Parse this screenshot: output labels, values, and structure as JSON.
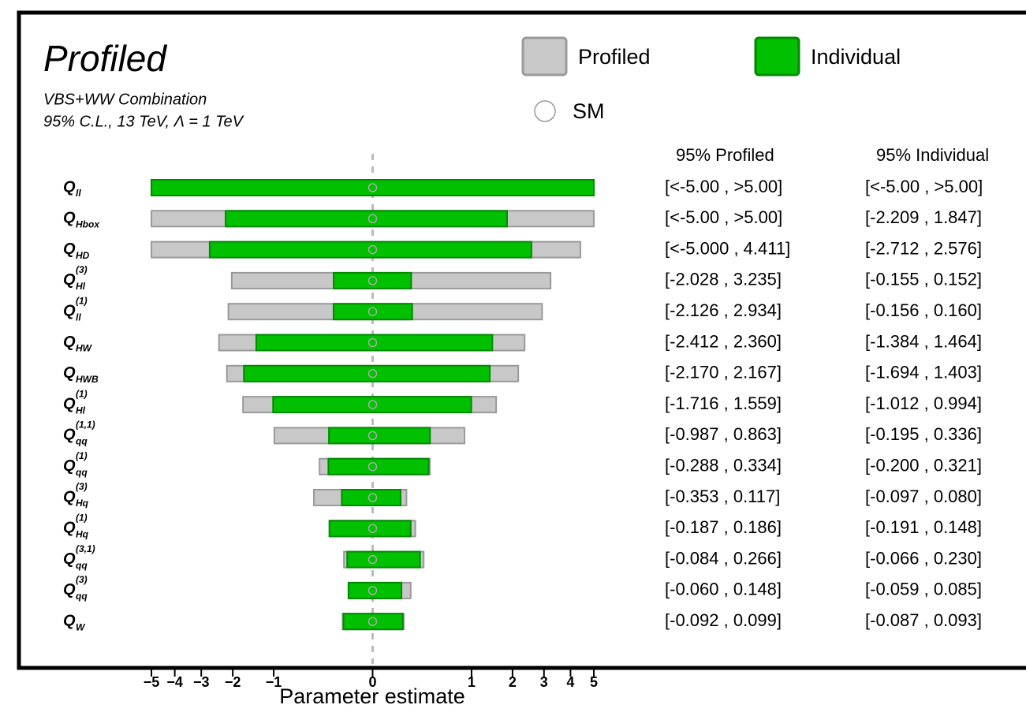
{
  "chart_data": {
    "type": "interval",
    "title": "Profiled",
    "subtitle_lines": [
      "VBS+WW Combination",
      "95% C.L., 13 TeV, Λ = 1 TeV"
    ],
    "x_label": "Parameter estimate",
    "x_scale": "sqrt",
    "xlim": [
      -5,
      5
    ],
    "xticks": [
      {
        "value": -5,
        "label": "−5"
      },
      {
        "value": -4,
        "label": "−4"
      },
      {
        "value": -3,
        "label": "−3"
      },
      {
        "value": -2,
        "label": "−2"
      },
      {
        "value": -1,
        "label": "−1"
      },
      0,
      1,
      2,
      3,
      4,
      5
    ],
    "sm_label": "SM",
    "sm_value": 0,
    "parameters": [
      {
        "symbol": "Q",
        "sub": "ll",
        "sup": null
      },
      {
        "symbol": "Q",
        "sub": "Hbox",
        "sup": null
      },
      {
        "symbol": "Q",
        "sub": "HD",
        "sup": null
      },
      {
        "symbol": "Q",
        "sub": "Hl",
        "sup": "(3)"
      },
      {
        "symbol": "Q",
        "sub": "ll",
        "sup": "(1)"
      },
      {
        "symbol": "Q",
        "sub": "HW",
        "sup": null
      },
      {
        "symbol": "Q",
        "sub": "HWB",
        "sup": null
      },
      {
        "symbol": "Q",
        "sub": "Hl",
        "sup": "(1)"
      },
      {
        "symbol": "Q",
        "sub": "qq",
        "sup": "(1,1)"
      },
      {
        "symbol": "Q",
        "sub": "qq",
        "sup": "(1)"
      },
      {
        "symbol": "Q",
        "sub": "Hq",
        "sup": "(3)"
      },
      {
        "symbol": "Q",
        "sub": "Hq",
        "sup": "(1)"
      },
      {
        "symbol": "Q",
        "sub": "qq",
        "sup": "(3,1)"
      },
      {
        "symbol": "Q",
        "sub": "qq",
        "sup": "(3)"
      },
      {
        "symbol": "Q",
        "sub": "W",
        "sup": null
      }
    ],
    "series": [
      {
        "name": "Profiled",
        "header": "95% Profiled",
        "color": "#c8c8c8",
        "edge": "#9a9a9a",
        "lows": [
          -5,
          -5,
          -5,
          -2.028,
          -2.126,
          -2.412,
          -2.17,
          -1.716,
          -0.987,
          -0.288,
          -0.353,
          -0.187,
          -0.084,
          -0.06,
          -0.092
        ],
        "highs": [
          5,
          5,
          4.411,
          3.235,
          2.934,
          2.36,
          2.167,
          1.559,
          0.863,
          0.334,
          0.117,
          0.186,
          0.266,
          0.148,
          0.099
        ],
        "value_labels": [
          "[<-5.00 , >5.00]",
          "[<-5.00 , >5.00]",
          "[<-5.000 , 4.411]",
          "[-2.028 , 3.235]",
          "[-2.126 , 2.934]",
          "[-2.412 , 2.360]",
          "[-2.170 , 2.167]",
          "[-1.716 , 1.559]",
          "[-0.987 , 0.863]",
          "[-0.288 , 0.334]",
          "[-0.353 , 0.117]",
          "[-0.187 , 0.186]",
          "[-0.084 , 0.266]",
          "[-0.060 , 0.148]",
          "[-0.092 , 0.099]"
        ]
      },
      {
        "name": "Individual",
        "header": "95% Individual",
        "color": "#00c000",
        "edge": "#008a00",
        "lows": [
          -5,
          -2.209,
          -2.712,
          -0.155,
          -0.156,
          -1.384,
          -1.694,
          -1.012,
          -0.195,
          -0.2,
          -0.097,
          -0.191,
          -0.066,
          -0.059,
          -0.087
        ],
        "highs": [
          5,
          1.847,
          2.576,
          0.152,
          0.16,
          1.464,
          1.403,
          0.994,
          0.336,
          0.321,
          0.08,
          0.148,
          0.23,
          0.085,
          0.093
        ],
        "value_labels": [
          "[<-5.00 , >5.00]",
          "[-2.209 , 1.847]",
          "[-2.712 , 2.576]",
          "[-0.155 , 0.152]",
          "[-0.156 , 0.160]",
          "[-1.384 , 1.464]",
          "[-1.694 , 1.403]",
          "[-1.012 , 0.994]",
          "[-0.195 , 0.336]",
          "[-0.200 , 0.321]",
          "[-0.097 , 0.080]",
          "[-0.191 , 0.148]",
          "[-0.066 , 0.230]",
          "[-0.059 , 0.085]",
          "[-0.087 , 0.093]"
        ]
      }
    ]
  }
}
